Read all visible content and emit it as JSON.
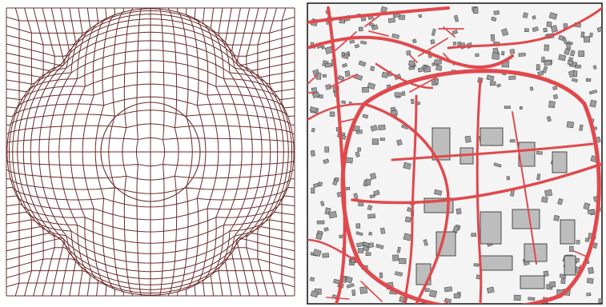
{
  "figure": {
    "left_panel": {
      "kind": "fisheye-distortion-grid",
      "grid_divisions": 32,
      "inner_circle": "present",
      "stroke_color": "#6a2c2c"
    },
    "right_panel": {
      "kind": "fisheye-distorted-city-map",
      "road_color": "#e0494d",
      "building_fill_focus": "#bdbdbd",
      "building_outline": "#3a3a3a",
      "background": "#f4f4f4",
      "border_color": "#111111"
    }
  }
}
